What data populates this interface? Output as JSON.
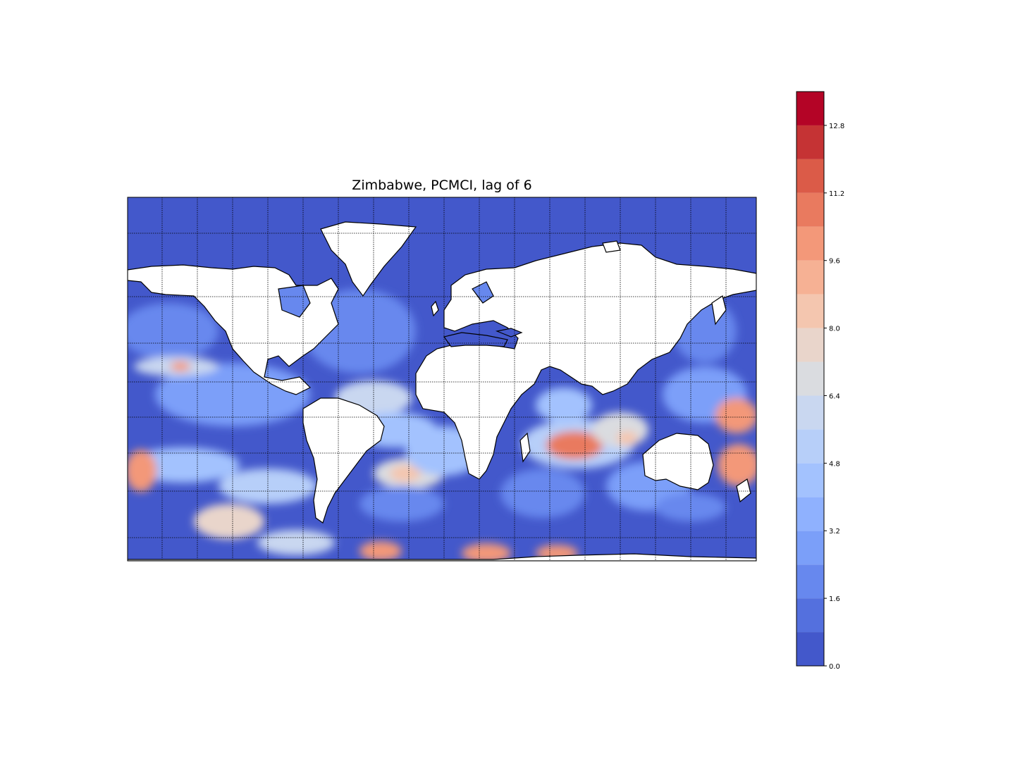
{
  "title": "Zimbabwe, PCMCI, lag of 6",
  "colorbar": {
    "tick_labels": [
      "0.0",
      "1.6",
      "3.2",
      "4.8",
      "6.4",
      "8.0",
      "9.6",
      "11.2",
      "12.8"
    ],
    "min": 0.0,
    "max": 13.6,
    "step": 0.8,
    "colors": [
      "#4358cb",
      "#5470de",
      "#6788ee",
      "#7b9ff9",
      "#8fb1fe",
      "#a3c2fe",
      "#b7cff9",
      "#c9d7f0",
      "#dadce0",
      "#e9d5cb",
      "#f4c6af",
      "#f6b194",
      "#f39879",
      "#e97a5f",
      "#db5b48",
      "#c53334",
      "#b40426"
    ]
  },
  "map": {
    "projection": "mercator",
    "land_color": "#ffffff",
    "coastline_color": "#000000",
    "gridlines": "dotted"
  }
}
